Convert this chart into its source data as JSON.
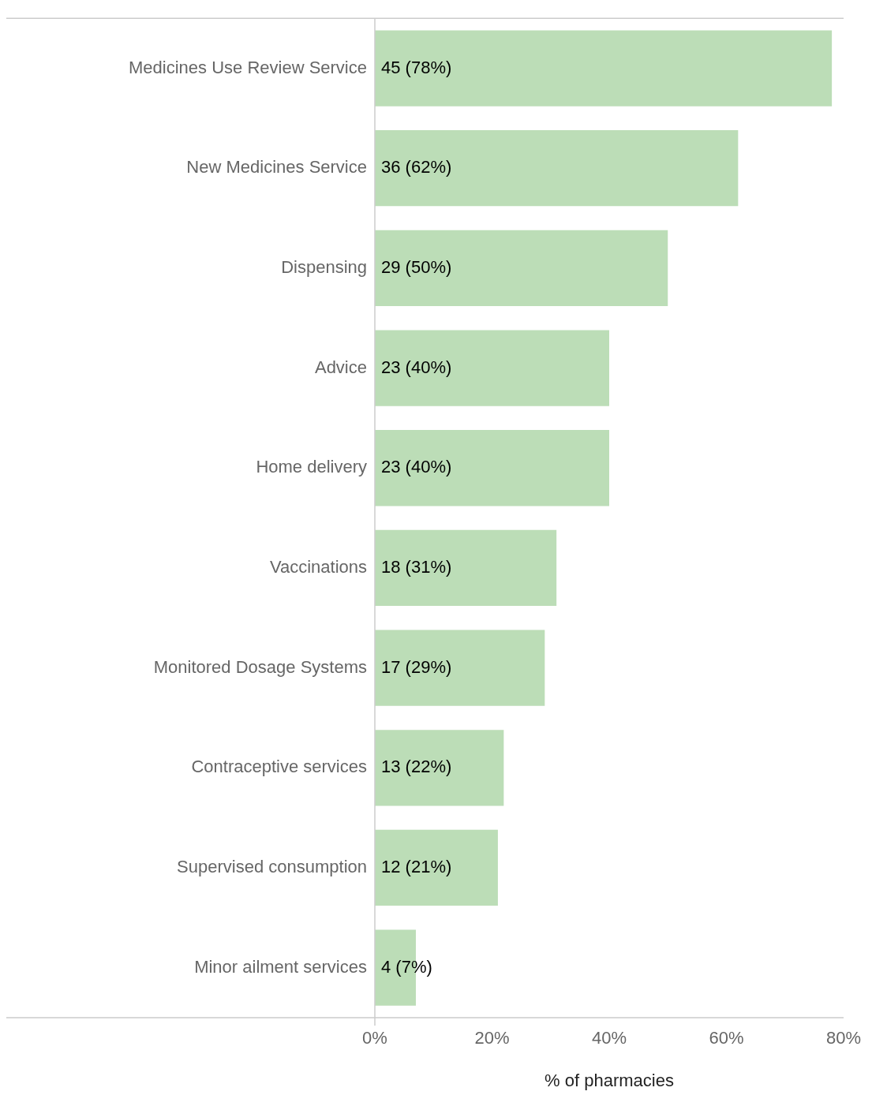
{
  "chart_data": {
    "type": "bar",
    "orientation": "horizontal",
    "xlabel": "% of pharmacies",
    "categories": [
      "Medicines Use Review Service",
      "New Medicines Service",
      "Dispensing",
      "Advice",
      "Home delivery",
      "Vaccinations",
      "Monitored Dosage Systems",
      "Contraceptive services",
      "Supervised consumption",
      "Minor ailment services"
    ],
    "values": [
      78,
      62,
      50,
      40,
      40,
      31,
      29,
      22,
      21,
      7
    ],
    "value_labels": [
      "45 (78%)",
      "36 (62%)",
      "29 (50%)",
      "23 (40%)",
      "23 (40%)",
      "18 (31%)",
      "17 (29%)",
      "13 (22%)",
      "12 (21%)",
      "4 (7%)"
    ],
    "color": "#bcddb7",
    "xlim": [
      0,
      80
    ],
    "xticks": [
      {
        "value": 0,
        "label": "0%"
      },
      {
        "value": 20,
        "label": "20%"
      },
      {
        "value": 40,
        "label": "40%"
      },
      {
        "value": 60,
        "label": "60%"
      },
      {
        "value": 80,
        "label": "80%"
      }
    ]
  }
}
